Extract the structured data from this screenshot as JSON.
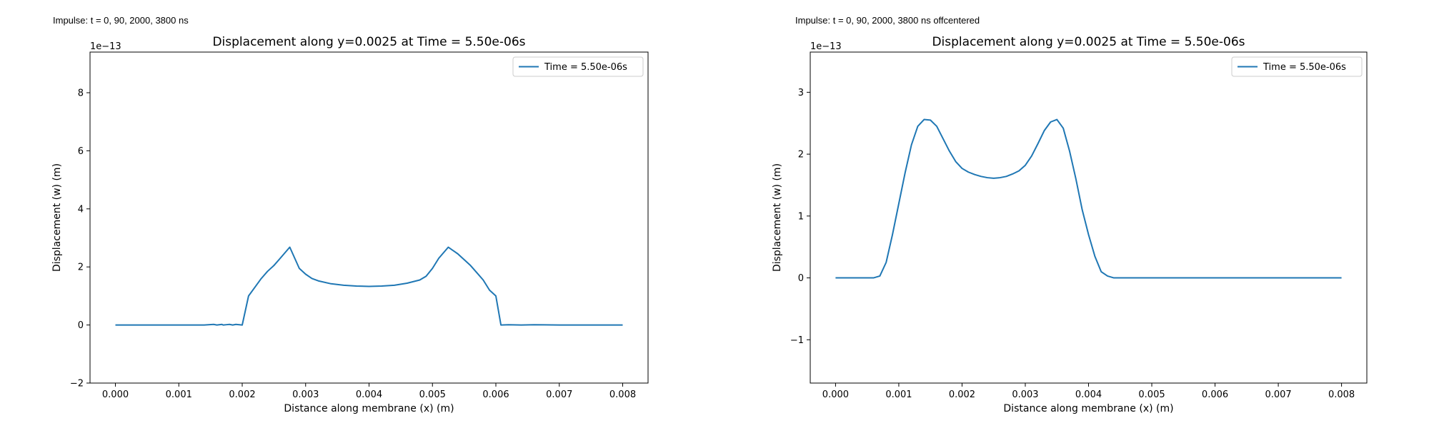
{
  "captions": [
    "Impulse: t = 0, 90, 2000, 3800 ns",
    "Impulse: t = 0, 90, 2000, 3800 ns offcentered"
  ],
  "chart_data": [
    {
      "type": "line",
      "title": "Displacement along y=0.0025 at Time = 5.50e-06s",
      "xlabel": "Distance along membrane (x) (m)",
      "ylabel": "Displacement (w) (m)",
      "y_offset_label": "1e−13",
      "xlim": [
        -0.0004,
        0.0084
      ],
      "ylim": [
        -2.0,
        9.4
      ],
      "xticks": [
        0.0,
        0.001,
        0.002,
        0.003,
        0.004,
        0.005,
        0.006,
        0.007,
        0.008
      ],
      "xtick_labels": [
        "0.000",
        "0.001",
        "0.002",
        "0.003",
        "0.004",
        "0.005",
        "0.006",
        "0.007",
        "0.008"
      ],
      "yticks": [
        -2,
        0,
        2,
        4,
        6,
        8
      ],
      "ytick_labels": [
        "−2",
        "0",
        "2",
        "4",
        "6",
        "8"
      ],
      "grid": false,
      "legend_position": "top-right",
      "color": "#1f77b4",
      "series": [
        {
          "name": "Time = 5.50e-06s",
          "x": [
            0.0,
            0.0005,
            0.001,
            0.0014,
            0.00155,
            0.0016,
            0.00168,
            0.0017,
            0.00175,
            0.0018,
            0.00185,
            0.0019,
            0.002,
            0.0021,
            0.0022,
            0.0023,
            0.0024,
            0.0025,
            0.0026,
            0.00275,
            0.0029,
            0.003,
            0.0031,
            0.0032,
            0.0034,
            0.0036,
            0.0038,
            0.004,
            0.0042,
            0.0044,
            0.0046,
            0.0048,
            0.0049,
            0.005,
            0.0051,
            0.00525,
            0.0054,
            0.0055,
            0.0056,
            0.0057,
            0.0058,
            0.0059,
            0.006,
            0.00608,
            0.0062,
            0.0064,
            0.0066,
            0.007,
            0.008
          ],
          "y": [
            0.0,
            0.0,
            0.0,
            0.0,
            0.02,
            0.0,
            0.02,
            0.0,
            0.01,
            0.02,
            0.0,
            0.02,
            0.0,
            1.0,
            1.3,
            1.6,
            1.85,
            2.05,
            2.3,
            2.68,
            1.95,
            1.75,
            1.6,
            1.52,
            1.42,
            1.37,
            1.34,
            1.33,
            1.34,
            1.37,
            1.44,
            1.55,
            1.68,
            1.95,
            2.3,
            2.68,
            2.45,
            2.25,
            2.05,
            1.8,
            1.55,
            1.2,
            1.0,
            0.0,
            0.01,
            0.0,
            0.01,
            0.0,
            0.0
          ]
        }
      ]
    },
    {
      "type": "line",
      "title": "Displacement along y=0.0025 at Time = 5.50e-06s",
      "xlabel": "Distance along membrane (x) (m)",
      "ylabel": "Displacement (w) (m)",
      "y_offset_label": "1e−13",
      "xlim": [
        -0.0004,
        0.0084
      ],
      "ylim": [
        -1.7,
        3.65
      ],
      "xticks": [
        0.0,
        0.001,
        0.002,
        0.003,
        0.004,
        0.005,
        0.006,
        0.007,
        0.008
      ],
      "xtick_labels": [
        "0.000",
        "0.001",
        "0.002",
        "0.003",
        "0.004",
        "0.005",
        "0.006",
        "0.007",
        "0.008"
      ],
      "yticks": [
        -1,
        0,
        1,
        2,
        3
      ],
      "ytick_labels": [
        "−1",
        "0",
        "1",
        "2",
        "3"
      ],
      "grid": false,
      "legend_position": "top-right",
      "color": "#1f77b4",
      "series": [
        {
          "name": "Time = 5.50e-06s",
          "x": [
            0.0,
            0.0003,
            0.0006,
            0.0007,
            0.0008,
            0.0009,
            0.001,
            0.0011,
            0.0012,
            0.0013,
            0.0014,
            0.0015,
            0.0016,
            0.0017,
            0.0018,
            0.0019,
            0.002,
            0.0021,
            0.0022,
            0.0023,
            0.0024,
            0.0025,
            0.0026,
            0.0027,
            0.0028,
            0.0029,
            0.003,
            0.0031,
            0.0032,
            0.0033,
            0.0034,
            0.0035,
            0.0036,
            0.0037,
            0.0038,
            0.0039,
            0.004,
            0.0041,
            0.0042,
            0.0043,
            0.0044,
            0.0045,
            0.00465,
            0.0048,
            0.005,
            0.006,
            0.007,
            0.008
          ],
          "y": [
            0.0,
            0.0,
            0.0,
            0.03,
            0.25,
            0.7,
            1.2,
            1.7,
            2.15,
            2.45,
            2.56,
            2.55,
            2.45,
            2.25,
            2.05,
            1.88,
            1.77,
            1.71,
            1.67,
            1.64,
            1.62,
            1.61,
            1.62,
            1.64,
            1.68,
            1.73,
            1.82,
            1.97,
            2.17,
            2.38,
            2.52,
            2.56,
            2.42,
            2.05,
            1.6,
            1.1,
            0.7,
            0.35,
            0.1,
            0.03,
            0.0,
            0.0,
            0.0,
            0.0,
            0.0,
            0.0,
            0.0,
            0.0
          ]
        }
      ]
    }
  ]
}
